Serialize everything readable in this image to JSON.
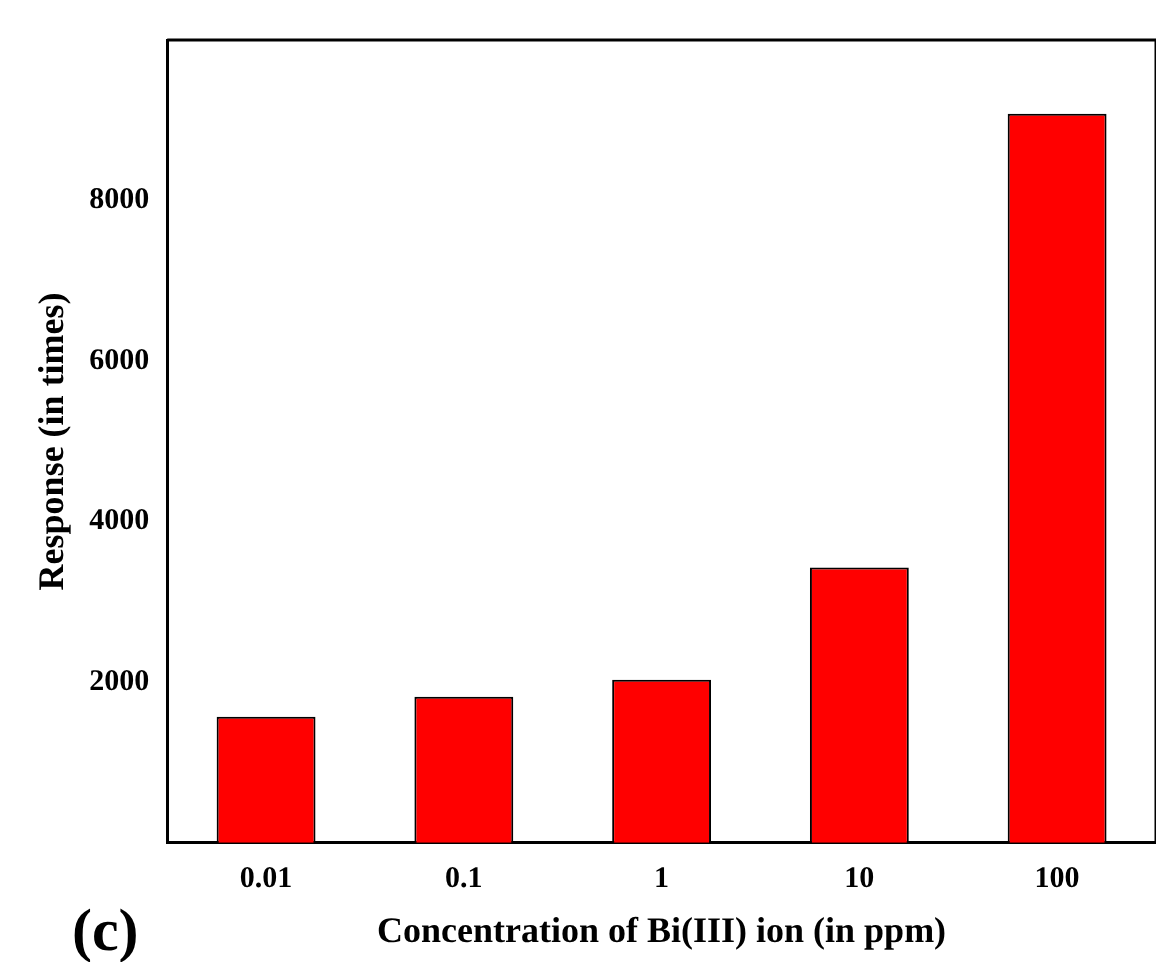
{
  "chart_data": {
    "type": "bar",
    "xlabel": "Concentration of Bi(III) ion (in ppm)",
    "ylabel": "Response (in times)",
    "annotations": [
      "(c)"
    ],
    "categories": [
      "0.01",
      "0.1",
      "1",
      "10",
      "100"
    ],
    "values": [
      1570,
      1820,
      2030,
      3430,
      9080
    ],
    "color": "#ff0000",
    "ylim": [
      0,
      10000
    ],
    "yticks": [
      2000,
      4000,
      6000,
      8000
    ],
    "grid": false,
    "legend": false
  }
}
